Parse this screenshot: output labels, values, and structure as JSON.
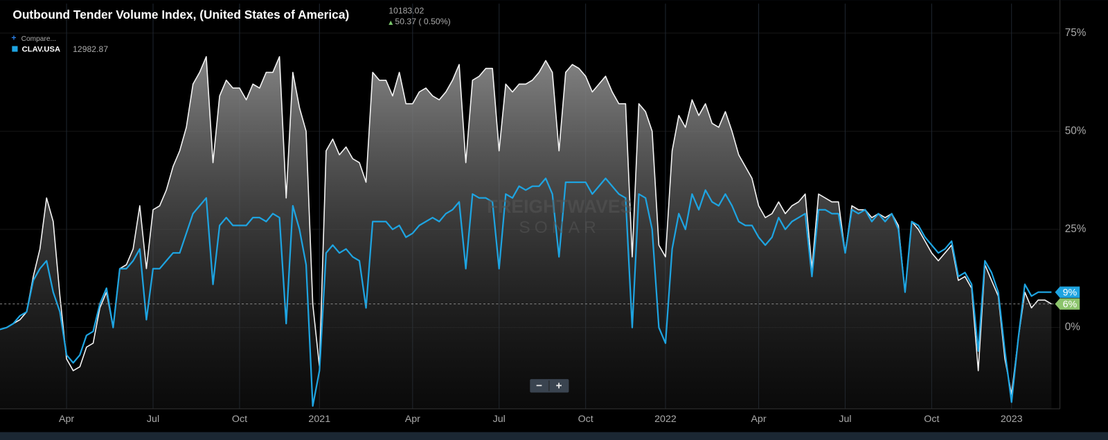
{
  "chart_data": {
    "type": "area-line",
    "title": "Outbound Tender Volume Index, (United States of America)",
    "last_value": "10183.02",
    "change": "50.37 ( 0.50%)",
    "compare": "Compare...",
    "watermark": [
      "FREIGHTWAVES",
      "SONAR"
    ],
    "zoom_controls": [
      "−",
      "+"
    ],
    "categories": [
      null,
      null,
      null,
      null,
      null,
      null,
      null,
      null,
      null,
      null,
      "Apr",
      null,
      null,
      null,
      null,
      null,
      null,
      null,
      null,
      null,
      null,
      null,
      null,
      "Jul",
      null,
      null,
      null,
      null,
      null,
      null,
      null,
      null,
      null,
      null,
      null,
      null,
      "Oct",
      null,
      null,
      null,
      null,
      null,
      null,
      null,
      null,
      null,
      null,
      null,
      "2021",
      null,
      null,
      null,
      null,
      null,
      null,
      null,
      null,
      null,
      null,
      null,
      null,
      null,
      "Apr",
      null,
      null,
      null,
      null,
      null,
      null,
      null,
      null,
      null,
      null,
      null,
      null,
      "Jul",
      null,
      null,
      null,
      null,
      null,
      null,
      null,
      null,
      null,
      null,
      null,
      null,
      "Oct",
      null,
      null,
      null,
      null,
      null,
      null,
      null,
      null,
      null,
      null,
      null,
      "2022",
      null,
      null,
      null,
      null,
      null,
      null,
      null,
      null,
      null,
      null,
      null,
      null,
      null,
      "Apr",
      null,
      null,
      null,
      null,
      null,
      null,
      null,
      null,
      null,
      null,
      null,
      null,
      "Jul",
      null,
      null,
      null,
      null,
      null,
      null,
      null,
      null,
      null,
      null,
      null,
      null,
      "Oct",
      null,
      null,
      null,
      null,
      null,
      null,
      null,
      null,
      null,
      null,
      null,
      "2023",
      null,
      null,
      null,
      null,
      null,
      null
    ],
    "series": [
      {
        "color": "#f2f2f2",
        "fill": true,
        "last_label": "6%",
        "last_label_color": "#8cc46c",
        "values": [
          -0.5,
          0,
          1,
          2,
          4,
          13,
          20,
          33,
          27,
          8,
          -8,
          -11,
          -10,
          -5,
          -4,
          5,
          9,
          0,
          15,
          16,
          20,
          31,
          15,
          30,
          31,
          35,
          41,
          45,
          51,
          62,
          65,
          69,
          42,
          59,
          63,
          61,
          61,
          58,
          62,
          61,
          65,
          65,
          69,
          33,
          65,
          56,
          50,
          6,
          -10,
          45,
          48,
          44,
          46,
          43,
          42,
          37,
          65,
          63,
          63,
          59,
          65,
          57,
          57,
          60,
          61,
          59,
          58,
          60,
          63,
          67,
          42,
          63,
          64,
          66,
          66,
          45,
          62,
          60,
          62,
          62,
          63,
          65,
          68,
          65,
          45,
          65,
          67,
          66,
          64,
          60,
          62,
          64,
          60,
          57,
          57,
          18,
          57,
          55,
          50,
          21,
          18,
          45,
          54,
          51,
          58,
          54,
          57,
          52,
          51,
          55,
          50,
          44,
          41,
          38,
          31,
          28,
          29,
          32,
          29,
          31,
          32,
          34,
          15,
          34,
          33,
          32,
          32,
          19,
          31,
          30,
          30,
          28,
          29,
          28,
          29,
          26,
          9,
          27,
          25,
          22,
          19,
          17,
          19,
          21,
          12,
          13,
          10,
          -11,
          16,
          12,
          8,
          -8,
          -17,
          -3,
          9,
          5,
          7,
          7,
          6
        ]
      },
      {
        "name": "CLAV.USA",
        "legend_value": "12982.87",
        "color": "#1ea4e1",
        "fill": false,
        "last_label": "9%",
        "last_label_color": "#1ea4e1",
        "values": [
          -0.5,
          0,
          1,
          3,
          4,
          12,
          15,
          17,
          9,
          4,
          -7,
          -9,
          -7,
          -2,
          -1,
          6,
          10,
          0,
          15,
          15,
          17,
          20,
          2,
          15,
          15,
          17,
          19,
          19,
          24,
          29,
          31,
          33,
          11,
          26,
          28,
          26,
          26,
          26,
          28,
          28,
          27,
          29,
          28,
          1,
          31,
          25,
          16,
          -20,
          -11,
          19,
          21,
          19,
          20,
          18,
          17,
          5,
          27,
          27,
          27,
          25,
          26,
          23,
          24,
          26,
          27,
          28,
          27,
          29,
          30,
          32,
          15,
          34,
          33,
          33,
          32,
          15,
          34,
          33,
          36,
          35,
          36,
          36,
          38,
          34,
          18,
          37,
          37,
          37,
          37,
          34,
          36,
          38,
          36,
          34,
          33,
          0,
          34,
          33,
          25,
          0,
          -4,
          20,
          29,
          25,
          34,
          30,
          35,
          32,
          31,
          34,
          31,
          27,
          26,
          26,
          23,
          21,
          23,
          28,
          25,
          27,
          28,
          29,
          13,
          30,
          30,
          29,
          29,
          19,
          30,
          29,
          30,
          27,
          29,
          27,
          29,
          25,
          9,
          27,
          26,
          23,
          21,
          19,
          20,
          22,
          13,
          14,
          11,
          -6,
          17,
          14,
          9,
          -6,
          -19,
          -3,
          11,
          8,
          9,
          9,
          9
        ]
      }
    ],
    "ylim": [
      -20.7,
      82.5
    ],
    "yticks": [
      {
        "value": 0,
        "label": "0%"
      },
      {
        "value": 25,
        "label": "25%"
      },
      {
        "value": 50,
        "label": "50%"
      },
      {
        "value": 75,
        "label": "75%"
      }
    ],
    "grid": true
  }
}
